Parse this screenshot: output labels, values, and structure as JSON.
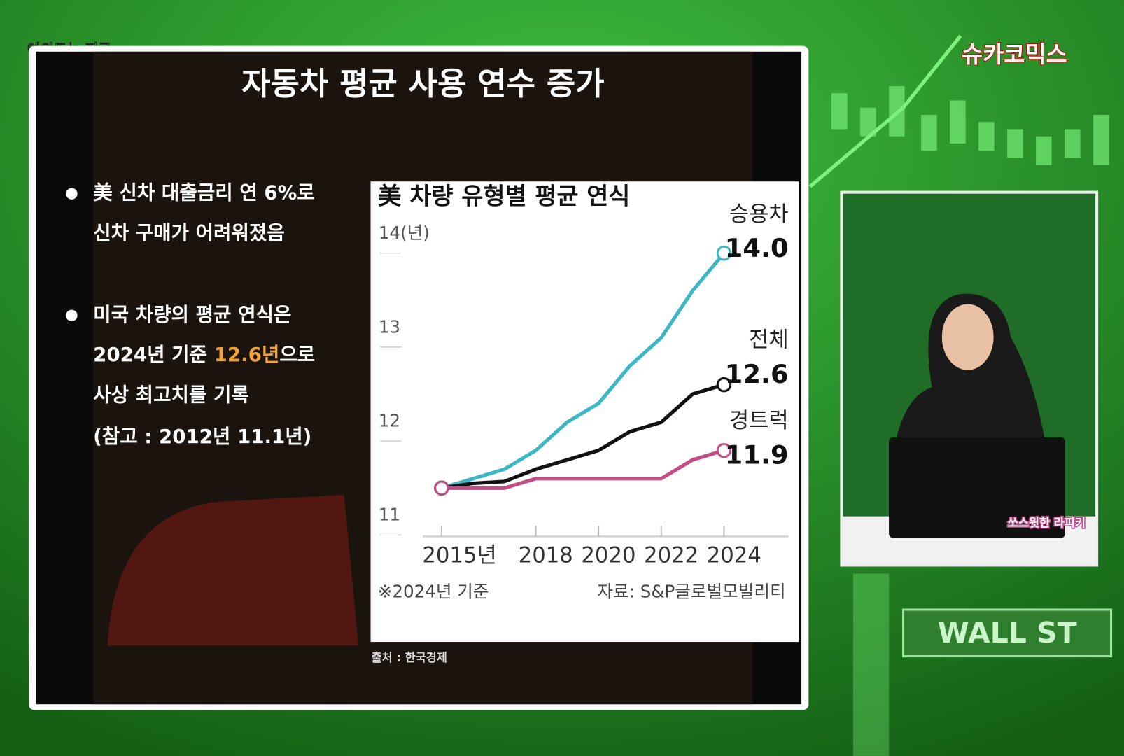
{
  "channel": "여의도는 지금",
  "logo": "슈카코믹스",
  "slide": {
    "title": "자동차 평균 사용 연수 증가",
    "bullets": [
      {
        "parts": [
          "美 신차 대출금리 연 6%로",
          "신차 구매가 어려워졌음"
        ]
      },
      {
        "parts": [
          "미국 차량의 평균 연식은",
          "2024년 기준 ",
          "12.6년",
          "으로",
          "사상 최고치를 기록",
          "(참고 : 2012년 11.1년)"
        ]
      }
    ],
    "source": "출처 : 한국경제"
  },
  "sticker": "쏘스윗한 라피키",
  "street_sign": "WALL ST",
  "chart_data": {
    "type": "line",
    "title": "美 차량 유형별 평균 연식",
    "x": [
      2015,
      2016,
      2017,
      2018,
      2019,
      2020,
      2021,
      2022,
      2023,
      2024
    ],
    "xlim": [
      2015,
      2024
    ],
    "xticks": [
      {
        "value": 2015,
        "label": "2015년"
      },
      2018,
      2020,
      2022,
      2024
    ],
    "ylim": [
      11,
      14
    ],
    "yticks": [
      11,
      12,
      13,
      {
        "value": 14,
        "label": "14(년)"
      }
    ],
    "series": [
      {
        "name": "승용차",
        "color": "#3bb8c4",
        "values": [
          11.5,
          11.6,
          11.7,
          11.9,
          12.2,
          12.4,
          12.8,
          13.1,
          13.6,
          14.0
        ],
        "value_labels": [
          null,
          null,
          null,
          null,
          null,
          null,
          null,
          null,
          null,
          "14.0"
        ]
      },
      {
        "name": "전체",
        "color": "#111111",
        "values": [
          11.5,
          11.55,
          11.57,
          11.7,
          11.8,
          11.9,
          12.1,
          12.2,
          12.5,
          12.6
        ],
        "value_labels": [
          null,
          null,
          null,
          null,
          null,
          null,
          null,
          null,
          null,
          "12.6"
        ]
      },
      {
        "name": "경트럭",
        "color": "#c44d86",
        "values": [
          11.5,
          11.5,
          11.5,
          11.6,
          11.6,
          11.6,
          11.6,
          11.6,
          11.8,
          11.9
        ],
        "value_labels": [
          null,
          null,
          null,
          null,
          null,
          null,
          null,
          null,
          null,
          "11.9"
        ]
      }
    ],
    "footnote": "※2024년 기준",
    "source": "자료: S&P글로벌모빌리티"
  }
}
